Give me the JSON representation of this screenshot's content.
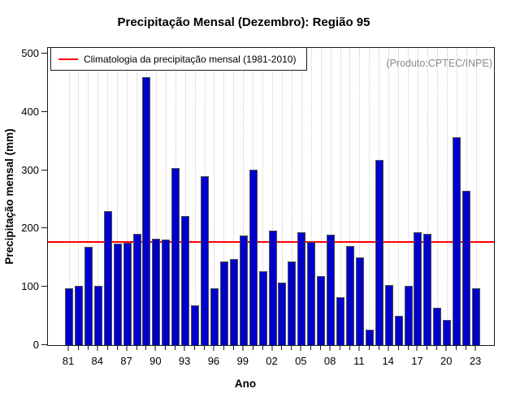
{
  "title": "Precipitação Mensal (Dezembro): Região 95",
  "annotations": {
    "source_note": "(Produto:CPTEC/INPE)"
  },
  "legend": {
    "label": "Climatologia da precipitação mensal (1981-2010)",
    "line_color": "#FF0000",
    "position": "top-left"
  },
  "chart_data": {
    "type": "bar",
    "title": "Precipitação Mensal (Dezembro): Região 95",
    "xlabel": "Ano",
    "ylabel": "Precipitação mensal (mm)",
    "ylim": [
      0,
      500
    ],
    "yticks": [
      0,
      100,
      200,
      300,
      400,
      500
    ],
    "grid": "vertical dotted line per year",
    "bar_color": "#0000CC",
    "bar_border_color": "#4D4D4D",
    "climatology_mm": 177,
    "climatology_line_color": "#FF0000",
    "x_tick_label_step": 3,
    "categories": [
      "81",
      "82",
      "83",
      "84",
      "85",
      "86",
      "87",
      "88",
      "89",
      "90",
      "91",
      "92",
      "93",
      "94",
      "95",
      "96",
      "97",
      "98",
      "99",
      "00",
      "01",
      "02",
      "03",
      "04",
      "05",
      "06",
      "07",
      "08",
      "09",
      "10",
      "11",
      "12",
      "13",
      "14",
      "15",
      "16",
      "17",
      "18",
      "19",
      "20",
      "21",
      "22",
      "23"
    ],
    "values": [
      97,
      102,
      168,
      101,
      230,
      174,
      176,
      191,
      459,
      183,
      181,
      303,
      222,
      68,
      290,
      97,
      144,
      147,
      188,
      301,
      127,
      196,
      107,
      144,
      194,
      177,
      119,
      189,
      82,
      170,
      151,
      26,
      317,
      103,
      50,
      101,
      194,
      191,
      64,
      43,
      357,
      264,
      98
    ]
  }
}
